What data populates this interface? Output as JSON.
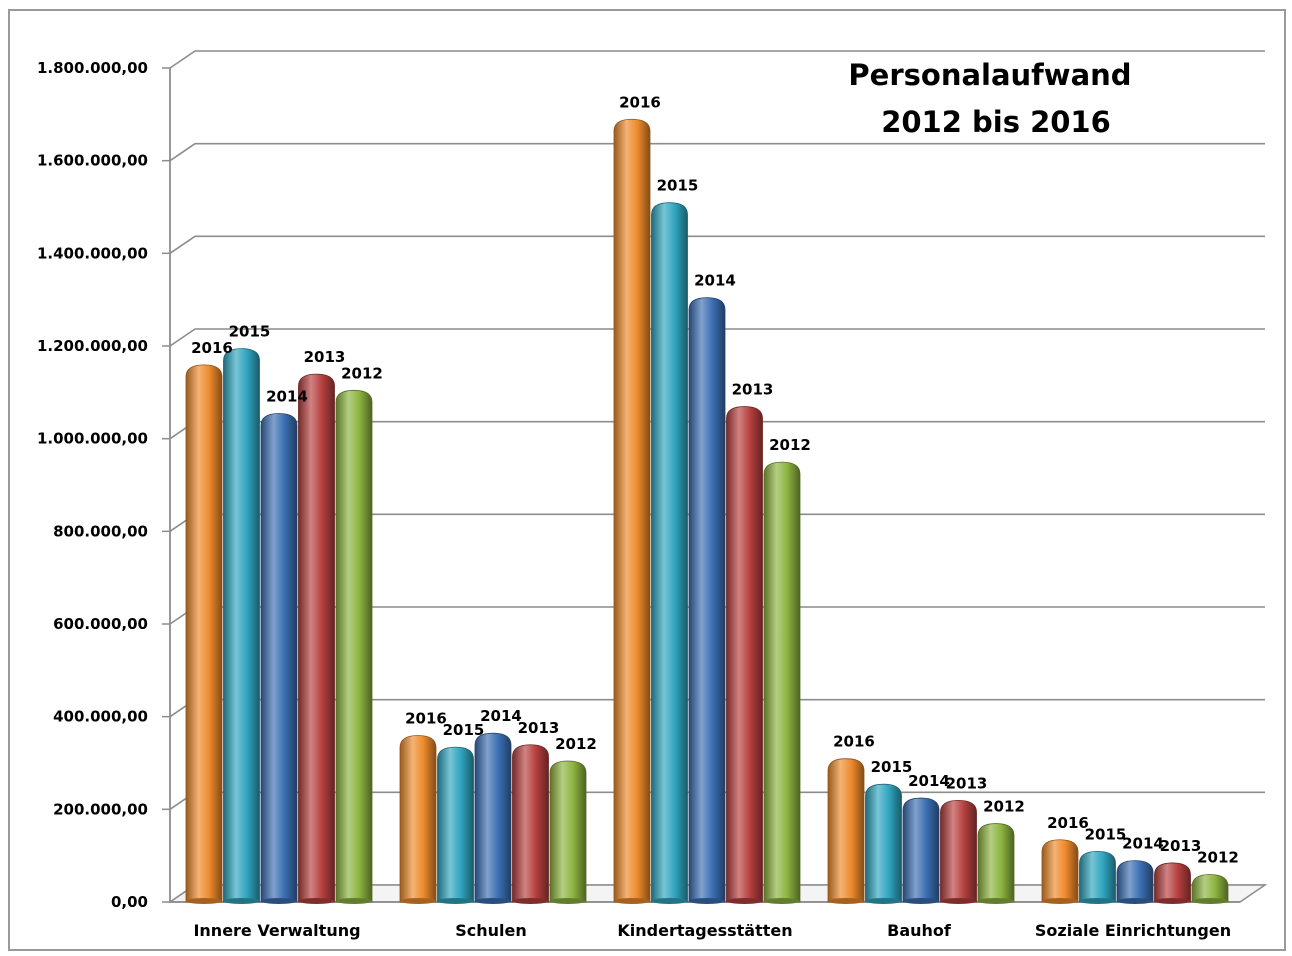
{
  "chart_data": {
    "type": "bar",
    "title": [
      "Personalaufwand",
      "2012 bis 2016"
    ],
    "xlabel": "",
    "ylabel": "",
    "ylim": [
      0,
      1800000
    ],
    "yticks": [
      0,
      200000,
      400000,
      600000,
      800000,
      1000000,
      1200000,
      1400000,
      1600000,
      1800000
    ],
    "ytick_labels": [
      "0,00",
      "200.000,00",
      "400.000,00",
      "600.000,00",
      "800.000,00",
      "1.000.000,00",
      "1.200.000,00",
      "1.400.000,00",
      "1.600.000,00",
      "1.800.000,00"
    ],
    "grid": true,
    "legend": "none",
    "categories": [
      "Innere Verwaltung",
      "Schulen",
      "Kindertagesstätten",
      "Bauhof",
      "Soziale Einrichtungen"
    ],
    "series": [
      {
        "name": "2016",
        "color": "#ee8a2c",
        "values": [
          1155000,
          355000,
          1685000,
          305000,
          130000
        ]
      },
      {
        "name": "2015",
        "color": "#2fa5bf",
        "values": [
          1190000,
          330000,
          1505000,
          250000,
          105000
        ]
      },
      {
        "name": "2014",
        "color": "#3b6fb3",
        "values": [
          1050000,
          360000,
          1300000,
          220000,
          85000
        ]
      },
      {
        "name": "2013",
        "color": "#b6403f",
        "values": [
          1135000,
          335000,
          1065000,
          215000,
          80000
        ]
      },
      {
        "name": "2012",
        "color": "#8cb33f",
        "values": [
          1100000,
          300000,
          945000,
          165000,
          55000
        ]
      }
    ]
  }
}
